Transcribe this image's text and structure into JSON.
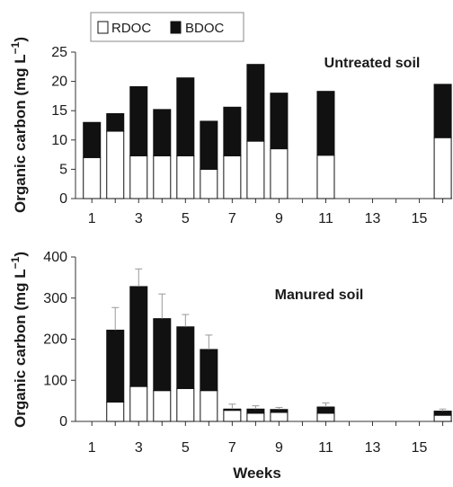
{
  "figure": {
    "x_axis_label": "Weeks",
    "legend": [
      {
        "name": "RDOC",
        "color": "#ffffff"
      },
      {
        "name": "BDOC",
        "color": "#111111"
      }
    ]
  },
  "chart_data": [
    {
      "type": "bar",
      "stacked": true,
      "annotation": "Untreated soil",
      "ylabel": "Organic carbon (mg L",
      "ylabel_exponent": "−1",
      "ylabel_close": ")",
      "xlabel": "",
      "xlim": [
        0.3,
        16.4
      ],
      "xticks": [
        1,
        3,
        5,
        7,
        9,
        11,
        13,
        15
      ],
      "ylim": [
        0,
        25
      ],
      "yticks": [
        0,
        5,
        10,
        15,
        20,
        25
      ],
      "grid": false,
      "legend_position": "top-left",
      "x": [
        1,
        2,
        3,
        4,
        5,
        6,
        7,
        8,
        9,
        11,
        16
      ],
      "series": [
        {
          "name": "RDOC",
          "values": [
            7.0,
            11.5,
            7.3,
            7.3,
            7.3,
            5.0,
            7.3,
            9.8,
            8.5,
            7.4,
            10.4
          ]
        },
        {
          "name": "BDOC",
          "values": [
            6.0,
            3.0,
            11.8,
            7.9,
            13.3,
            8.2,
            8.3,
            13.1,
            9.5,
            10.9,
            9.1
          ]
        }
      ],
      "error": null
    },
    {
      "type": "bar",
      "stacked": true,
      "annotation": "Manured soil",
      "ylabel": "Organic carbon (mg L",
      "ylabel_exponent": "−1",
      "ylabel_close": ")",
      "xlabel": "Weeks",
      "xlim": [
        0.3,
        16.4
      ],
      "xticks": [
        1,
        3,
        5,
        7,
        9,
        11,
        13,
        15
      ],
      "ylim": [
        0,
        400
      ],
      "yticks": [
        0,
        100,
        200,
        300,
        400
      ],
      "grid": false,
      "legend_position": "none",
      "x": [
        2,
        3,
        4,
        5,
        6,
        7,
        8,
        9,
        11,
        16
      ],
      "series": [
        {
          "name": "RDOC",
          "values": [
            47,
            85,
            75,
            80,
            75,
            27,
            20,
            22,
            20,
            15
          ]
        },
        {
          "name": "BDOC",
          "values": [
            175,
            243,
            175,
            150,
            100,
            3,
            10,
            7,
            15,
            10
          ]
        }
      ],
      "error": [
        55,
        43,
        60,
        30,
        35,
        12,
        8,
        5,
        10,
        5
      ]
    }
  ]
}
